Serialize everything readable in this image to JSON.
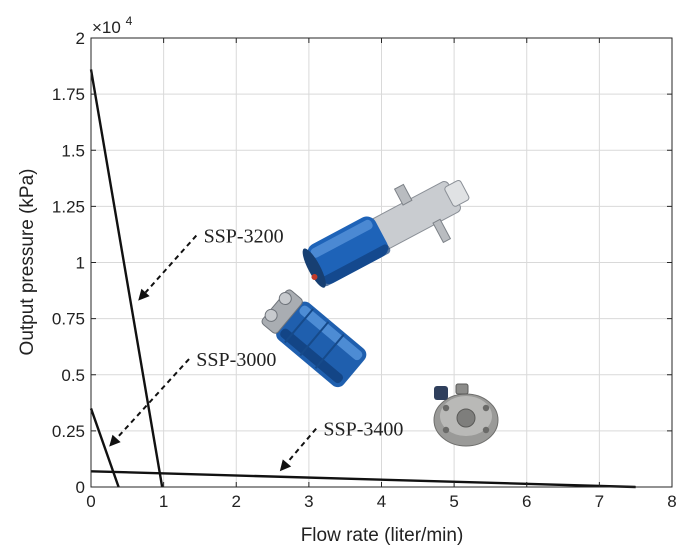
{
  "chart_data": {
    "type": "line",
    "xlabel": "Flow  rate (liter/min)",
    "ylabel": "Output pressure (kPa)",
    "xlim": [
      0,
      8
    ],
    "ylim": [
      0,
      20000
    ],
    "x_ticks": [
      0,
      1,
      2,
      3,
      4,
      5,
      6,
      7,
      8
    ],
    "x_tick_labels": [
      "0",
      "1",
      "2",
      "3",
      "4",
      "5",
      "6",
      "7",
      "8"
    ],
    "y_ticks": [
      0,
      2500,
      5000,
      7500,
      10000,
      12500,
      15000,
      17500,
      20000
    ],
    "y_tick_labels": [
      "0",
      "0.25",
      "0.5",
      "0.75",
      "1",
      "1.25",
      "1.5",
      "1.75",
      "2"
    ],
    "y_multiplier": "×10",
    "y_multiplier_exp": "4",
    "grid": true,
    "series": [
      {
        "name": "SSP-3200",
        "x": [
          0,
          0.98
        ],
        "y": [
          18600,
          0
        ]
      },
      {
        "name": "SSP-3000",
        "x": [
          0,
          0.38
        ],
        "y": [
          3500,
          0
        ]
      },
      {
        "name": "SSP-3400",
        "x": [
          0,
          7.5
        ],
        "y": [
          700,
          0
        ]
      }
    ],
    "annotations": [
      {
        "text": "SSP-3200",
        "series": "SSP-3200",
        "text_x": 1.55,
        "text_y": 11200,
        "tip_x": 0.65,
        "tip_y": 8300,
        "tail_x": 1.45,
        "tail_y": 11200
      },
      {
        "text": "SSP-3000",
        "series": "SSP-3000",
        "text_x": 1.45,
        "text_y": 5700,
        "tip_x": 0.25,
        "tip_y": 1800,
        "tail_x": 1.35,
        "tail_y": 5700
      },
      {
        "text": "SSP-3400",
        "series": "SSP-3400",
        "text_x": 3.2,
        "text_y": 2600,
        "tip_x": 2.6,
        "tip_y": 700,
        "tail_x": 3.1,
        "tail_y": 2600
      }
    ],
    "images": [
      {
        "name": "ssp-3200-pump-photo",
        "color": "#1e63b8"
      },
      {
        "name": "ssp-3000-pump-photo",
        "color": "#1f5fae"
      },
      {
        "name": "ssp-3400-pump-photo",
        "color": "#9a9a98"
      }
    ]
  }
}
